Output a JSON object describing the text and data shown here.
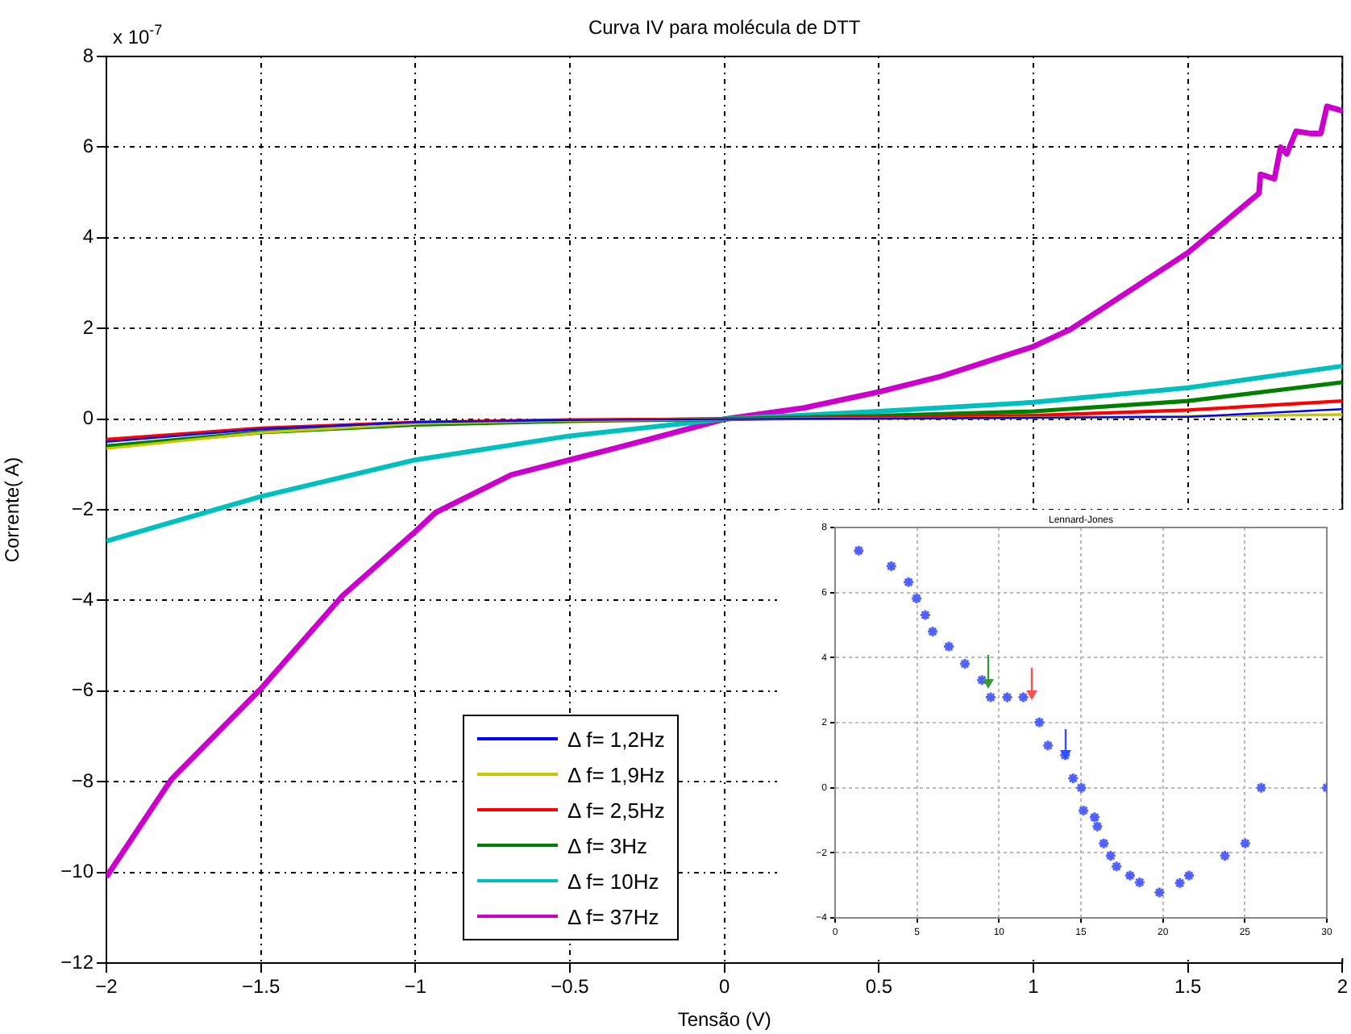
{
  "chart_data": [
    {
      "type": "line",
      "title": "Curva IV para molécula de DTT",
      "xlabel": "Tensão (V)",
      "ylabel": "Corrente( A)",
      "annotations": [
        "x 10$^{-7}$"
      ],
      "xlim": [
        -2,
        2
      ],
      "xticks": [
        -2,
        -1.5,
        -1,
        -0.5,
        0,
        0.5,
        1,
        1.5,
        2
      ],
      "ylim": [
        -12,
        8
      ],
      "yticks": [
        -12,
        -10,
        -8,
        -6,
        -4,
        -2,
        0,
        2,
        4,
        6,
        8
      ],
      "grid": true,
      "legend": "bottom",
      "marker": "none",
      "line_style": "solid",
      "series": [
        {
          "name": "Δ f= 1,2Hz",
          "color": "#0000ff",
          "x": [
            -2,
            -1.5,
            -1,
            -0.5,
            0,
            0.5,
            1,
            1.5,
            2
          ],
          "values": [
            -0.5,
            -0.22,
            -0.07,
            -0.02,
            0,
            0.01,
            0.03,
            0.05,
            0.22
          ]
        },
        {
          "name": "Δ f= 1,9Hz",
          "color": "#c8c800",
          "x": [
            -2,
            -1.5,
            -1,
            -0.5,
            0,
            0.5,
            1,
            1.5,
            2
          ],
          "values": [
            -0.65,
            -0.3,
            -0.1,
            -0.03,
            0,
            0.01,
            0.03,
            0.06,
            0.1
          ]
        },
        {
          "name": "Δ f= 2,5Hz",
          "color": "#ff0000",
          "x": [
            -2,
            -1.5,
            -1,
            -0.5,
            0,
            0.5,
            1,
            1.5,
            2
          ],
          "values": [
            -0.45,
            -0.2,
            -0.07,
            -0.02,
            0,
            0.03,
            0.08,
            0.2,
            0.4
          ]
        },
        {
          "name": "Δ f= 3Hz",
          "color": "#008000",
          "x": [
            -2,
            -1.5,
            -1,
            -0.5,
            0,
            0.5,
            1,
            1.5,
            2
          ],
          "values": [
            -0.6,
            -0.29,
            -0.12,
            -0.04,
            0,
            0.07,
            0.17,
            0.4,
            0.81
          ]
        },
        {
          "name": "Δ f= 10Hz",
          "color": "#00bfbf",
          "x": [
            -2,
            -1.5,
            -1,
            -0.5,
            0,
            0.5,
            1,
            1.5,
            2
          ],
          "values": [
            -2.69,
            -1.71,
            -0.9,
            -0.37,
            0,
            0.17,
            0.37,
            0.69,
            1.17
          ]
        },
        {
          "name": "Δ f= 37Hz",
          "color": "#cc00cc",
          "x": [
            -2,
            -1.79,
            -1.5,
            -1.236,
            -1,
            -0.934,
            -0.69,
            -0.5,
            -0.25,
            0,
            0.26,
            0.5,
            0.7,
            1,
            1.12,
            1.26,
            1.5,
            1.73,
            1.735,
            1.78,
            1.8,
            1.82,
            1.85,
            1.9,
            1.93,
            1.95,
            2
          ],
          "values": [
            -10.1,
            -7.95,
            -5.95,
            -3.9,
            -2.48,
            -2.06,
            -1.23,
            -0.9,
            -0.46,
            0,
            0.25,
            0.6,
            0.94,
            1.6,
            1.98,
            2.6,
            3.67,
            4.98,
            5.4,
            5.3,
            6.0,
            5.85,
            6.35,
            6.3,
            6.3,
            6.9,
            6.8
          ]
        }
      ]
    },
    {
      "type": "scatter",
      "title": "Lennard-Jones",
      "xlim": [
        0,
        30
      ],
      "xticks": [
        0,
        5,
        10,
        15,
        20,
        25,
        30
      ],
      "ylim": [
        -4,
        8
      ],
      "yticks": [
        -4,
        -2,
        0,
        2,
        4,
        6,
        8
      ],
      "grid": true,
      "marker": "cross",
      "series": [
        {
          "color": "#5060ff",
          "x": [
            1.44,
            3.43,
            4.48,
            4.97,
            5.5,
            5.95,
            6.94,
            7.92,
            8.96,
            9.49,
            10.5,
            11.48,
            12.46,
            12.99,
            14.03,
            14.52,
            15.02,
            15.15,
            15.83,
            16.0,
            16.39,
            16.81,
            17.17,
            17.99,
            18.58,
            19.79,
            21.03,
            21.59,
            23.78,
            25.02,
            26.0,
            30
          ],
          "values": [
            7.29,
            6.81,
            6.32,
            5.82,
            5.31,
            4.8,
            4.34,
            3.81,
            3.31,
            2.78,
            2.78,
            2.78,
            2.01,
            1.3,
            1.0,
            0.29,
            0.0,
            -0.7,
            -0.91,
            -1.19,
            -1.71,
            -2.09,
            -2.42,
            -2.7,
            -2.91,
            -3.22,
            -2.93,
            -2.7,
            -2.09,
            -1.71,
            0.0,
            0.0
          ]
        }
      ]
    }
  ]
}
